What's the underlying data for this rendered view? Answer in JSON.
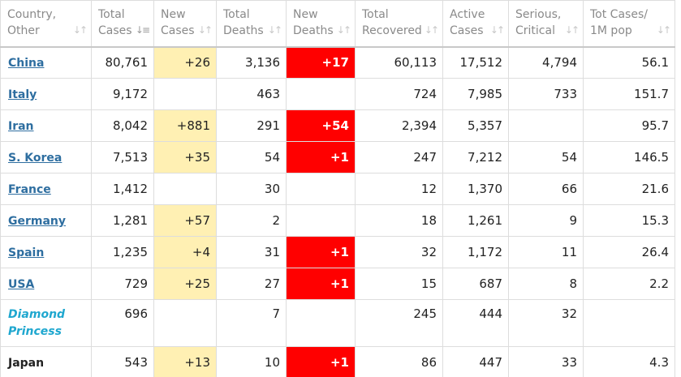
{
  "colors": {
    "new_cases_bg": "#fff0b3",
    "new_deaths_bg": "#ff0000",
    "link": "#2e6ea0",
    "diamond_princess": "#1fa7cf",
    "header_text": "#8a8a8a"
  },
  "columns": [
    {
      "line1": "Country,",
      "line2": "Other",
      "icon": "sort-both-icon"
    },
    {
      "line1": "Total",
      "line2": "Cases",
      "icon": "sort-desc-icon"
    },
    {
      "line1": "New",
      "line2": "Cases",
      "icon": "sort-both-icon"
    },
    {
      "line1": "Total",
      "line2": "Deaths",
      "icon": "sort-both-icon"
    },
    {
      "line1": "New",
      "line2": "Deaths",
      "icon": "sort-both-icon"
    },
    {
      "line1": "Total",
      "line2": "Recovered",
      "icon": "sort-both-icon"
    },
    {
      "line1": "Active",
      "line2": "Cases",
      "icon": "sort-both-icon"
    },
    {
      "line1": "Serious,",
      "line2": "Critical",
      "icon": "sort-both-icon"
    },
    {
      "line1": "Tot Cases/",
      "line2": "1M pop",
      "icon": "sort-both-icon"
    }
  ],
  "rows": [
    {
      "country": "China",
      "style": "link",
      "total_cases": "80,761",
      "new_cases": "+26",
      "total_deaths": "3,136",
      "new_deaths": "+17",
      "total_recovered": "60,113",
      "active_cases": "17,512",
      "serious_critical": "4,794",
      "tot_cases_1m": "56.1"
    },
    {
      "country": "Italy",
      "style": "link",
      "total_cases": "9,172",
      "new_cases": "",
      "total_deaths": "463",
      "new_deaths": "",
      "total_recovered": "724",
      "active_cases": "7,985",
      "serious_critical": "733",
      "tot_cases_1m": "151.7"
    },
    {
      "country": "Iran",
      "style": "link",
      "total_cases": "8,042",
      "new_cases": "+881",
      "total_deaths": "291",
      "new_deaths": "+54",
      "total_recovered": "2,394",
      "active_cases": "5,357",
      "serious_critical": "",
      "tot_cases_1m": "95.7"
    },
    {
      "country": "S. Korea",
      "style": "link",
      "total_cases": "7,513",
      "new_cases": "+35",
      "total_deaths": "54",
      "new_deaths": "+1",
      "total_recovered": "247",
      "active_cases": "7,212",
      "serious_critical": "54",
      "tot_cases_1m": "146.5"
    },
    {
      "country": "France",
      "style": "link",
      "total_cases": "1,412",
      "new_cases": "",
      "total_deaths": "30",
      "new_deaths": "",
      "total_recovered": "12",
      "active_cases": "1,370",
      "serious_critical": "66",
      "tot_cases_1m": "21.6"
    },
    {
      "country": "Germany",
      "style": "link",
      "total_cases": "1,281",
      "new_cases": "+57",
      "total_deaths": "2",
      "new_deaths": "",
      "total_recovered": "18",
      "active_cases": "1,261",
      "serious_critical": "9",
      "tot_cases_1m": "15.3"
    },
    {
      "country": "Spain",
      "style": "link",
      "total_cases": "1,235",
      "new_cases": "+4",
      "total_deaths": "31",
      "new_deaths": "+1",
      "total_recovered": "32",
      "active_cases": "1,172",
      "serious_critical": "11",
      "tot_cases_1m": "26.4"
    },
    {
      "country": "USA",
      "style": "link",
      "total_cases": "729",
      "new_cases": "+25",
      "total_deaths": "27",
      "new_deaths": "+1",
      "total_recovered": "15",
      "active_cases": "687",
      "serious_critical": "8",
      "tot_cases_1m": "2.2"
    },
    {
      "country": "Diamond Princess",
      "style": "italic",
      "total_cases": "696",
      "new_cases": "",
      "total_deaths": "7",
      "new_deaths": "",
      "total_recovered": "245",
      "active_cases": "444",
      "serious_critical": "32",
      "tot_cases_1m": ""
    },
    {
      "country": "Japan",
      "style": "plain",
      "total_cases": "543",
      "new_cases": "+13",
      "total_deaths": "10",
      "new_deaths": "+1",
      "total_recovered": "86",
      "active_cases": "447",
      "serious_critical": "33",
      "tot_cases_1m": "4.3"
    }
  ]
}
